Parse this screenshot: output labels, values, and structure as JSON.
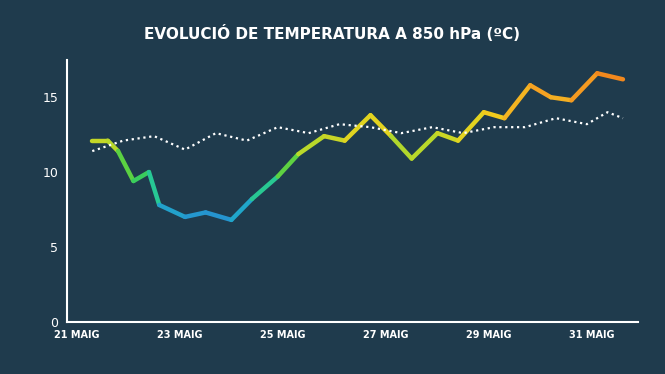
{
  "chart_data": {
    "type": "line",
    "title": "EVOLUCIÓ DE TEMPERATURA A 850 hPa (ºC)",
    "series": [
      {
        "type": "gradient_line",
        "line_style": "solid",
        "x": [
          21.3,
          21.6,
          21.8,
          22.1,
          22.4,
          22.6,
          23.1,
          23.5,
          24.0,
          24.4,
          24.9,
          25.3,
          25.8,
          26.2,
          26.7,
          27.1,
          27.5,
          28.0,
          28.4,
          28.9,
          29.3,
          29.8,
          30.2,
          30.6,
          31.1,
          31.6
        ],
        "values": [
          12.1,
          12.1,
          11.4,
          9.4,
          10.0,
          7.8,
          7.0,
          7.3,
          6.8,
          8.2,
          9.7,
          11.2,
          12.4,
          12.1,
          13.8,
          12.4,
          10.9,
          12.6,
          12.1,
          14.0,
          13.6,
          15.8,
          15.0,
          14.8,
          16.6,
          16.2
        ]
      },
      {
        "type": "line",
        "color": "#ffffff",
        "line_style": "dotted",
        "x": [
          21.3,
          21.9,
          22.5,
          23.1,
          23.7,
          24.3,
          24.9,
          25.5,
          26.1,
          26.7,
          27.3,
          27.9,
          28.5,
          29.1,
          29.7,
          30.3,
          30.9,
          31.3,
          31.6
        ],
        "values": [
          11.4,
          12.1,
          12.4,
          11.5,
          12.6,
          12.1,
          13.0,
          12.6,
          13.2,
          13.0,
          12.6,
          13.0,
          12.6,
          13.0,
          13.0,
          13.6,
          13.2,
          14.0,
          13.6
        ]
      }
    ],
    "xlim": [
      20.8,
      31.9
    ],
    "xticks": [
      {
        "value": 21,
        "label": "21 MAIG"
      },
      {
        "value": 23,
        "label": "23 MAIG"
      },
      {
        "value": 25,
        "label": "25 MAIG"
      },
      {
        "value": 27,
        "label": "27 MAIG"
      },
      {
        "value": 29,
        "label": "29 MAIG"
      },
      {
        "value": 31,
        "label": "31 MAIG"
      }
    ],
    "ylim": [
      0,
      17.5
    ],
    "yticks": [
      0,
      5,
      10,
      15
    ],
    "grid": false
  }
}
